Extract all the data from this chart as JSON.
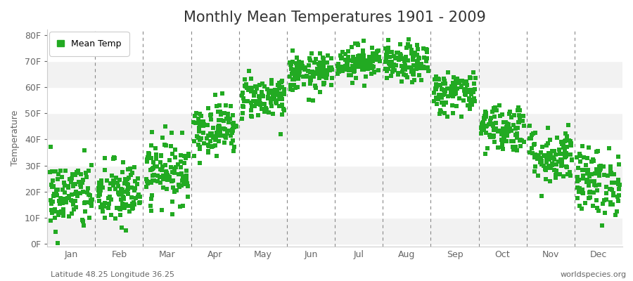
{
  "title": "Monthly Mean Temperatures 1901 - 2009",
  "ylabel": "Temperature",
  "xlabel_labels": [
    "Jan",
    "Feb",
    "Mar",
    "Apr",
    "May",
    "Jun",
    "Jul",
    "Aug",
    "Sep",
    "Oct",
    "Nov",
    "Dec"
  ],
  "ytick_labels": [
    "0F",
    "10F",
    "20F",
    "30F",
    "40F",
    "50F",
    "60F",
    "70F",
    "80F"
  ],
  "ytick_values": [
    0,
    10,
    20,
    30,
    40,
    50,
    60,
    70,
    80
  ],
  "ylim": [
    -1,
    82
  ],
  "dot_color": "#22aa22",
  "bg_color": "#ffffff",
  "plot_bg_color": "#ffffff",
  "band_light": "#f2f2f2",
  "band_dark": "#e6e6e6",
  "grid_color": "#888888",
  "legend_label": "Mean Temp",
  "bottom_left_text": "Latitude 48.25 Longitude 36.25",
  "bottom_right_text": "worldspecies.org",
  "title_fontsize": 15,
  "label_fontsize": 9,
  "tick_fontsize": 9,
  "marker_size": 5,
  "num_years": 109,
  "monthly_means_celsius": [
    -7.5,
    -7.2,
    -2.2,
    6.8,
    13.5,
    18.5,
    21.0,
    20.5,
    14.5,
    7.0,
    1.0,
    -4.5
  ],
  "monthly_std_celsius": [
    3.8,
    3.6,
    3.4,
    2.8,
    2.3,
    2.0,
    1.8,
    2.0,
    2.3,
    2.6,
    3.0,
    3.6
  ]
}
